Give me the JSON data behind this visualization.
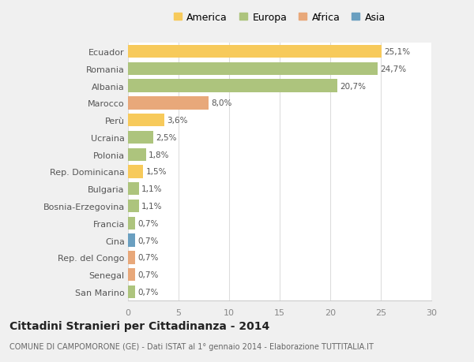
{
  "categories": [
    "Ecuador",
    "Romania",
    "Albania",
    "Marocco",
    "Perù",
    "Ucraina",
    "Polonia",
    "Rep. Dominicana",
    "Bulgaria",
    "Bosnia-Erzegovina",
    "Francia",
    "Cina",
    "Rep. del Congo",
    "Senegal",
    "San Marino"
  ],
  "values": [
    25.1,
    24.7,
    20.7,
    8.0,
    3.6,
    2.5,
    1.8,
    1.5,
    1.1,
    1.1,
    0.7,
    0.7,
    0.7,
    0.7,
    0.7
  ],
  "labels": [
    "25,1%",
    "24,7%",
    "20,7%",
    "8,0%",
    "3,6%",
    "2,5%",
    "1,8%",
    "1,5%",
    "1,1%",
    "1,1%",
    "0,7%",
    "0,7%",
    "0,7%",
    "0,7%",
    "0,7%"
  ],
  "colors": [
    "#f7ca5b",
    "#adc47d",
    "#adc47d",
    "#e8a87a",
    "#f7ca5b",
    "#adc47d",
    "#adc47d",
    "#f7ca5b",
    "#adc47d",
    "#adc47d",
    "#adc47d",
    "#6a9fc0",
    "#e8a87a",
    "#e8a87a",
    "#adc47d"
  ],
  "legend_labels": [
    "America",
    "Europa",
    "Africa",
    "Asia"
  ],
  "legend_colors": [
    "#f7ca5b",
    "#adc47d",
    "#e8a87a",
    "#6a9fc0"
  ],
  "title": "Cittadini Stranieri per Cittadinanza - 2014",
  "subtitle": "COMUNE DI CAMPOMORONE (GE) - Dati ISTAT al 1° gennaio 2014 - Elaborazione TUTTITALIA.IT",
  "xlim": [
    0,
    30
  ],
  "xticks": [
    0,
    5,
    10,
    15,
    20,
    25,
    30
  ],
  "bg_color": "#f0f0f0",
  "plot_bg_color": "#ffffff",
  "bar_height": 0.75
}
